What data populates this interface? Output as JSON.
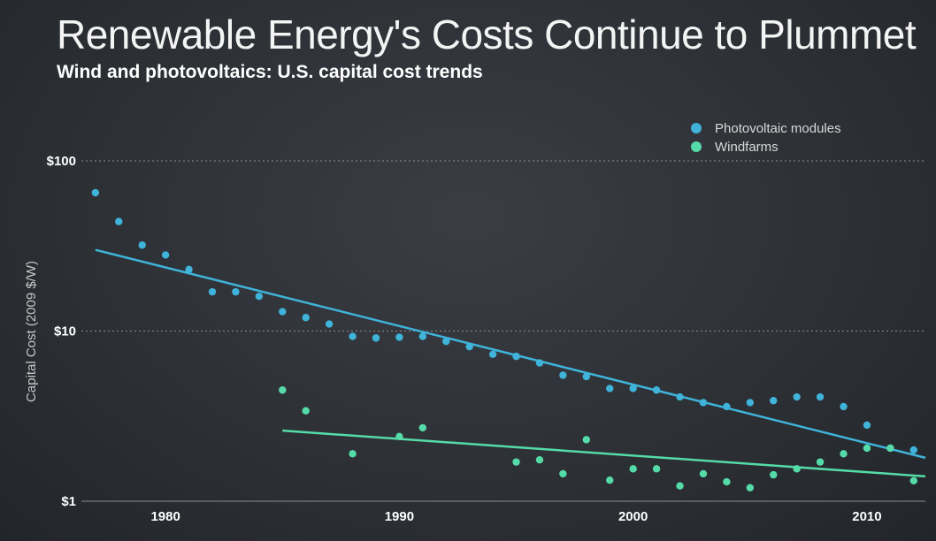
{
  "title": "Renewable Energy's Costs Continue to Plummet",
  "subtitle": "Wind and photovoltaics: U.S. capital cost trends",
  "colors": {
    "pv": "#3fb3d9",
    "wind": "#55dba8",
    "grid": "#8a8d92"
  },
  "chart_data": {
    "type": "scatter",
    "ylabel": "Capital Cost (2009 $/W)",
    "yscale": "log",
    "ylim": [
      1,
      100
    ],
    "xlim": [
      1976.4,
      2012.5
    ],
    "y_ticks": [
      {
        "value": 100,
        "label": "$100"
      },
      {
        "value": 10,
        "label": "$10"
      },
      {
        "value": 1,
        "label": "$1"
      }
    ],
    "x_ticks": [
      {
        "value": 1980,
        "label": "1980"
      },
      {
        "value": 1990,
        "label": "1990"
      },
      {
        "value": 2000,
        "label": "2000"
      },
      {
        "value": 2010,
        "label": "2010"
      }
    ],
    "series": [
      {
        "name": "Photovoltaic modules",
        "color_key": "pv",
        "x": [
          1977,
          1978,
          1979,
          1980,
          1981,
          1982,
          1983,
          1984,
          1985,
          1986,
          1987,
          1988,
          1989,
          1990,
          1991,
          1992,
          1993,
          1994,
          1995,
          1996,
          1997,
          1998,
          1999,
          2000,
          2001,
          2002,
          2003,
          2004,
          2005,
          2006,
          2007,
          2008,
          2009,
          2010,
          2011,
          2012
        ],
        "y": [
          65,
          44,
          32,
          28,
          23,
          17,
          17,
          16,
          13,
          12,
          11,
          9.3,
          9.1,
          9.2,
          9.3,
          8.7,
          8.1,
          7.3,
          7.1,
          6.5,
          5.5,
          5.4,
          4.6,
          4.6,
          4.5,
          4.1,
          3.8,
          3.6,
          3.8,
          3.9,
          4.1,
          4.1,
          3.6,
          2.8,
          2.05,
          2.0
        ],
        "trend": {
          "x": [
            1977,
            2012.5
          ],
          "y": [
            30,
            1.8
          ]
        }
      },
      {
        "name": "Windfarms",
        "color_key": "wind",
        "x": [
          1985,
          1986,
          1988,
          1990,
          1991,
          1995,
          1996,
          1997,
          1998,
          1999,
          2000,
          2001,
          2002,
          2003,
          2004,
          2005,
          2006,
          2007,
          2008,
          2009,
          2010,
          2011,
          2012
        ],
        "y": [
          4.5,
          3.4,
          1.9,
          2.4,
          2.7,
          1.7,
          1.75,
          1.45,
          2.3,
          1.33,
          1.55,
          1.55,
          1.23,
          1.45,
          1.3,
          1.2,
          1.43,
          1.55,
          1.7,
          1.9,
          2.05,
          2.05,
          1.32
        ],
        "trend": {
          "x": [
            1985,
            2012.5
          ],
          "y": [
            2.6,
            1.4
          ]
        }
      }
    ]
  }
}
